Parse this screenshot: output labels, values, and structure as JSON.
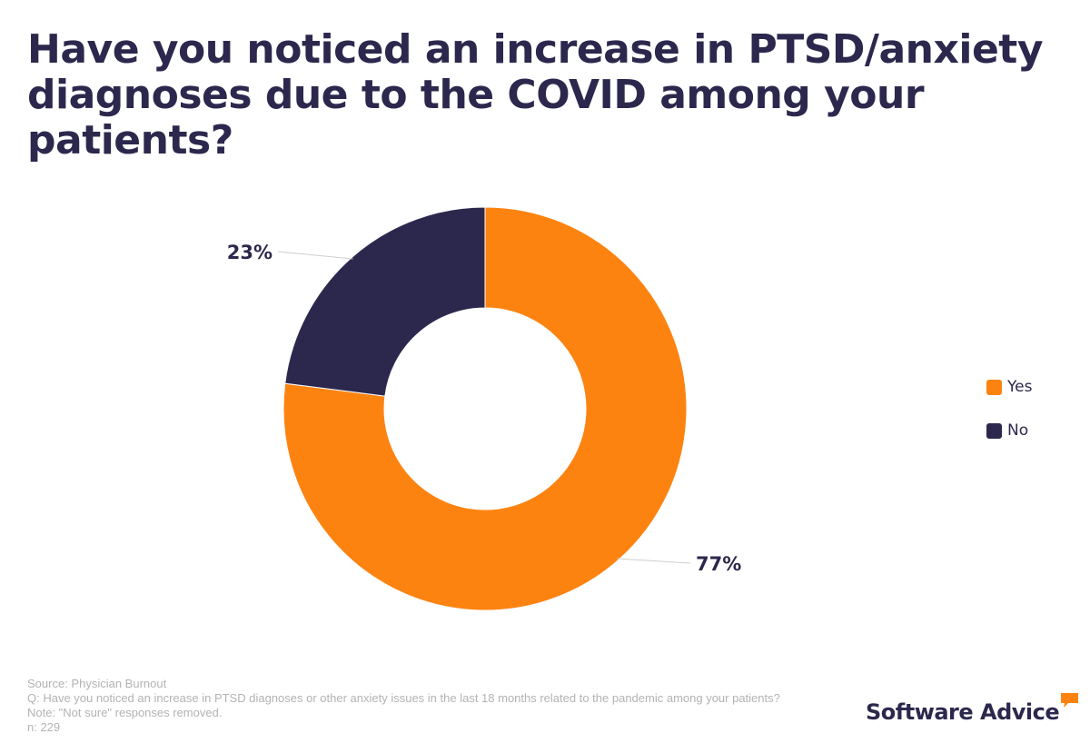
{
  "chart_data": {
    "type": "pie",
    "variant": "donut",
    "title": "Have you noticed an increase in PTSD/anxiety diagnoses due to the COVID among your patients?",
    "categories": [
      "Yes",
      "No"
    ],
    "values": [
      77,
      23
    ],
    "labels": [
      "77%",
      "23%"
    ],
    "colors": [
      "#fd8311",
      "#2c284d"
    ],
    "legend": {
      "placement": "right",
      "entries": [
        "Yes",
        "No"
      ]
    }
  },
  "footer": {
    "source": "Source: Physician Burnout",
    "question": "Q: Have you noticed an increase in PTSD diagnoses or other anxiety issues in the last 18 months related to the pandemic among your patients?",
    "note": "Note: \"Not sure\" responses removed.",
    "n": "n: 229"
  },
  "logo": {
    "text": "Software Advice",
    "accent_color": "#fd8311",
    "text_color": "#2c284d"
  }
}
